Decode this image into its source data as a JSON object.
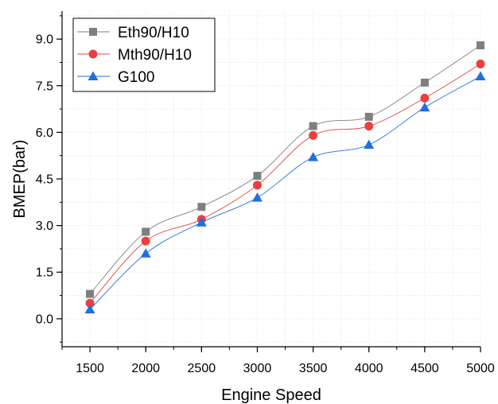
{
  "chart_data": {
    "type": "line",
    "title": "",
    "xlabel": "Engine Speed",
    "ylabel": "BMEP(bar)",
    "x": [
      1500,
      2000,
      2500,
      3000,
      3500,
      4000,
      4500,
      5000
    ],
    "xlim": [
      1250,
      5000
    ],
    "ylim": [
      -0.9,
      9.9
    ],
    "xticks": [
      1500,
      2000,
      2500,
      3000,
      3500,
      4000,
      4500,
      5000
    ],
    "yticks": [
      0.0,
      1.5,
      3.0,
      4.5,
      6.0,
      7.5,
      9.0
    ],
    "xtick_labels": [
      "1500",
      "2000",
      "2500",
      "3000",
      "3500",
      "4000",
      "4500",
      "5000"
    ],
    "ytick_labels": [
      "0.0",
      "1.5",
      "3.0",
      "4.5",
      "6.0",
      "7.5",
      "9.0"
    ],
    "grid": true,
    "legend_position": "top-left",
    "series": [
      {
        "name": "Eth90/H10",
        "marker": "square",
        "color": "#7f7f7f",
        "values": [
          0.8,
          2.8,
          3.6,
          4.6,
          6.2,
          6.5,
          7.6,
          8.8
        ]
      },
      {
        "name": "Mth90/H10",
        "marker": "circle",
        "color": "#e8403f",
        "values": [
          0.5,
          2.5,
          3.2,
          4.3,
          5.9,
          6.2,
          7.1,
          8.2
        ]
      },
      {
        "name": "G100",
        "marker": "triangle",
        "color": "#1f6fe0",
        "values": [
          0.3,
          2.1,
          3.1,
          3.9,
          5.2,
          5.6,
          6.8,
          7.8
        ]
      }
    ]
  }
}
